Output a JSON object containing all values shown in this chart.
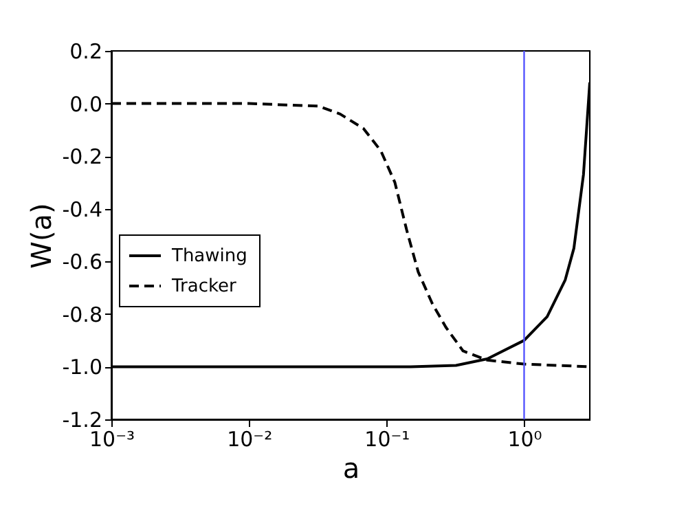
{
  "chart_data": {
    "type": "line",
    "xlabel": "a",
    "ylabel": "W(a)",
    "log": "x",
    "xlim": [
      0.001,
      3
    ],
    "ylim": [
      -1.2,
      0.2
    ],
    "xticks": [
      {
        "value": 0.001,
        "label": "10⁻³"
      },
      {
        "value": 0.01,
        "label": "10⁻²"
      },
      {
        "value": 0.1,
        "label": "10⁻¹"
      },
      {
        "value": 1,
        "label": "10⁰"
      }
    ],
    "yticks": [
      0.2,
      {
        "value": 0,
        "label": "0.0"
      },
      -0.2,
      -0.4,
      -0.6,
      -0.8,
      {
        "value": -1,
        "label": "-1.0"
      },
      -1.2
    ],
    "grid": false,
    "legend": "left",
    "series": [
      {
        "name": "Thawing",
        "color": "#000000",
        "line_style": "solid",
        "x": [
          0.001,
          0.01,
          0.1,
          0.15,
          0.32,
          0.54,
          1,
          1.47,
          1.99,
          2.3,
          2.7,
          3
        ],
        "values": [
          -1.0,
          -1.0,
          -1.0,
          -1.0,
          -0.995,
          -0.97,
          -0.9,
          -0.81,
          -0.67,
          -0.55,
          -0.27,
          0.08
        ]
      },
      {
        "name": "Tracker",
        "color": "#000000",
        "line_style": "dashed",
        "x": [
          0.001,
          0.01,
          0.032,
          0.046,
          0.068,
          0.091,
          0.115,
          0.14,
          0.17,
          0.215,
          0.27,
          0.36,
          0.54,
          1,
          3
        ],
        "values": [
          0.0,
          0.0,
          -0.01,
          -0.04,
          -0.095,
          -0.18,
          -0.3,
          -0.48,
          -0.64,
          -0.76,
          -0.85,
          -0.94,
          -0.975,
          -0.99,
          -1.0
        ]
      }
    ],
    "ref_lines": [
      {
        "axis": "x",
        "value": 1,
        "color": "#5555ff"
      }
    ]
  }
}
